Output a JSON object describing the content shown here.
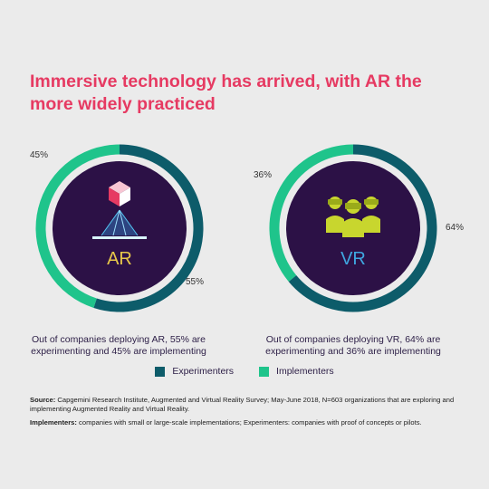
{
  "title": "Immersive technology has arrived, with AR the more widely practiced",
  "colors": {
    "experimenters": "#0d5c6a",
    "implementers": "#1fc48b",
    "center": "#2c1146",
    "title": "#e63a62",
    "background": "#ebebeb",
    "vr_label": "#3fa7e0"
  },
  "chart_data": [
    {
      "type": "pie",
      "label": "AR",
      "slices": [
        {
          "name": "Experimenters",
          "value": 55
        },
        {
          "name": "Implementers",
          "value": 45
        }
      ],
      "labels": {
        "experimenters": "55%",
        "implementers": "45%"
      },
      "caption": "Out of companies deploying AR, 55% are experimenting and 45% are implementing"
    },
    {
      "type": "pie",
      "label": "VR",
      "slices": [
        {
          "name": "Experimenters",
          "value": 64
        },
        {
          "name": "Implementers",
          "value": 36
        }
      ],
      "labels": {
        "experimenters": "64%",
        "implementers": "36%"
      },
      "caption": "Out of companies deploying VR, 64% are experimenting and 36% are implementing"
    }
  ],
  "legend": {
    "experimenters": "Experimenters",
    "implementers": "Implementers"
  },
  "footnotes": {
    "source_label": "Source:",
    "source_text": "Capgemini Research Institute, Augmented and Virtual Reality Survey; May-June 2018, N=603 organizations that are exploring and implementing Augmented Reality and Virtual Reality.",
    "implementers_label": "Implementers:",
    "implementers_text": "companies with small or large-scale implementations; Experimenters: companies with proof of concepts or pilots."
  },
  "icons": {
    "ar": "ar-cube-projection-icon",
    "vr": "vr-headset-people-icon"
  }
}
